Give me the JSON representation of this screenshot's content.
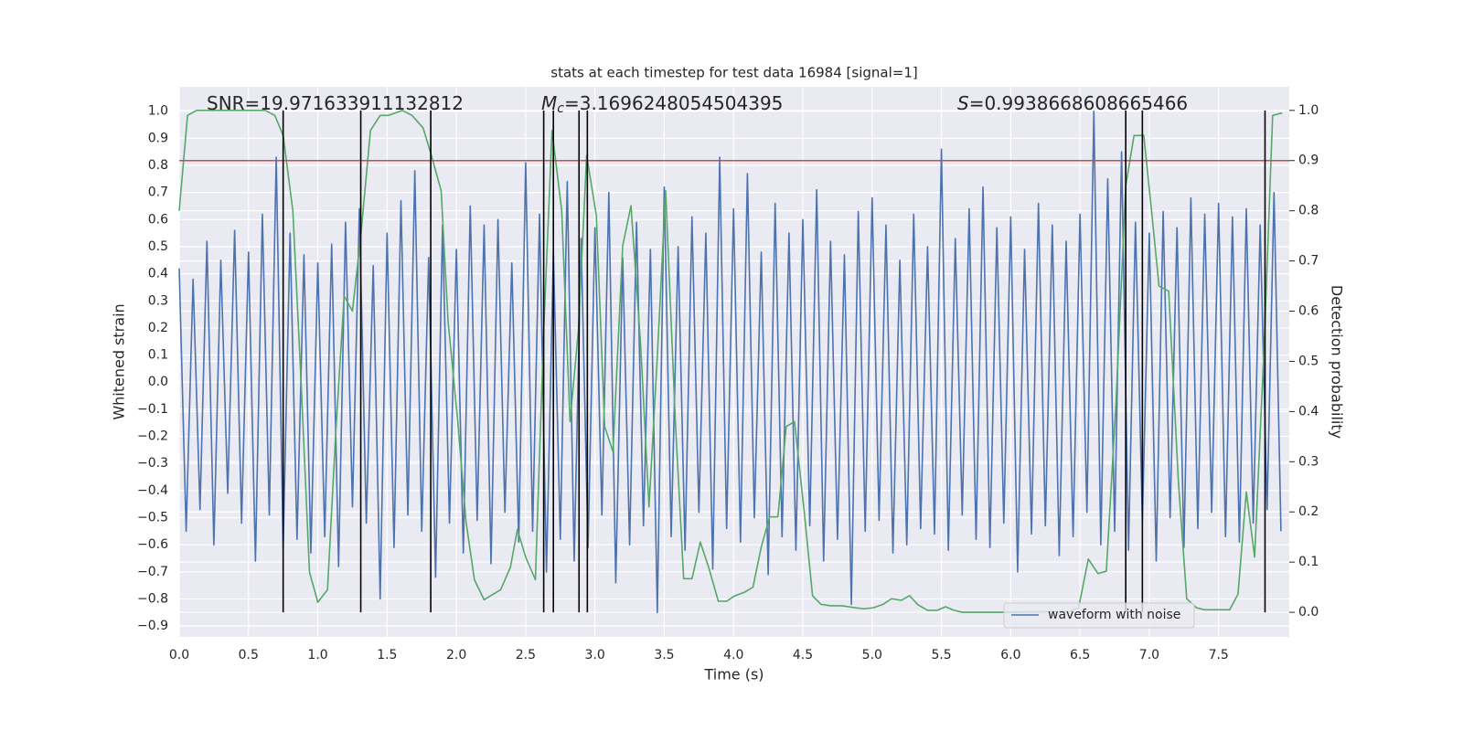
{
  "chart_data": {
    "type": "line",
    "title": "stats at each timestep for test data 16984 [signal=1]",
    "xlabel": "Time (s)",
    "ylabel": "Whitened strain",
    "y2label": "Detection probability",
    "annotations": [
      {
        "text": "SNR=19.971633911132812"
      },
      {
        "symbol": "M",
        "sub": "c",
        "text": "=3.1696248054504395"
      },
      {
        "symbol": "S",
        "text": "=0.9938668608665466"
      }
    ],
    "xlim": [
      0,
      8.01
    ],
    "ylim": [
      -0.94,
      1.09
    ],
    "y2lim": [
      -0.049,
      1.047
    ],
    "xticks": [
      {
        "value": 0,
        "label": "0.0"
      },
      0.5,
      {
        "value": 1,
        "label": "1.0"
      },
      1.5,
      {
        "value": 2,
        "label": "2.0"
      },
      2.5,
      {
        "value": 3,
        "label": "3.0"
      },
      3.5,
      {
        "value": 4,
        "label": "4.0"
      },
      4.5,
      {
        "value": 5,
        "label": "5.0"
      },
      5.5,
      {
        "value": 6,
        "label": "6.0"
      },
      6.5,
      {
        "value": 7,
        "label": "7.0"
      },
      7.5
    ],
    "yticks": [
      {
        "value": -0.9,
        "label": "−0.9"
      },
      {
        "value": -0.8,
        "label": "−0.8"
      },
      {
        "value": -0.7,
        "label": "−0.7"
      },
      {
        "value": -0.6,
        "label": "−0.6"
      },
      {
        "value": -0.5,
        "label": "−0.5"
      },
      {
        "value": -0.4,
        "label": "−0.4"
      },
      {
        "value": -0.3,
        "label": "−0.3"
      },
      {
        "value": -0.2,
        "label": "−0.2"
      },
      {
        "value": -0.1,
        "label": "−0.1"
      },
      {
        "value": 0,
        "label": "0.0"
      },
      0.1,
      0.2,
      0.3,
      0.4,
      0.5,
      0.6,
      0.7,
      0.8,
      0.9,
      {
        "value": 1,
        "label": "1.0"
      }
    ],
    "y2ticks": [
      {
        "value": 0,
        "label": "0.0"
      },
      0.1,
      0.2,
      0.3,
      0.4,
      0.5,
      0.6,
      0.7,
      0.8,
      0.9,
      {
        "value": 1,
        "label": "1.0"
      }
    ],
    "grid": true,
    "legend": "lower right",
    "series": [
      {
        "name": "waveform with noise",
        "color": "#4c72b0",
        "x": [
          0,
          0.05,
          0.1,
          0.15,
          0.2,
          0.25,
          0.3,
          0.35,
          0.4,
          0.45,
          0.5,
          0.55,
          0.6,
          0.65,
          0.7,
          0.75,
          0.8,
          0.85,
          0.9,
          0.95,
          1,
          1.05,
          1.1,
          1.15,
          1.2,
          1.25,
          1.3,
          1.35,
          1.4,
          1.45,
          1.5,
          1.55,
          1.6,
          1.65,
          1.7,
          1.75,
          1.8,
          1.85,
          1.9,
          1.95,
          2,
          2.05,
          2.1,
          2.15,
          2.2,
          2.25,
          2.3,
          2.35,
          2.4,
          2.45,
          2.5,
          2.55,
          2.6,
          2.65,
          2.7,
          2.75,
          2.8,
          2.85,
          2.9,
          2.95,
          3,
          3.05,
          3.1,
          3.15,
          3.2,
          3.25,
          3.3,
          3.35,
          3.4,
          3.45,
          3.5,
          3.55,
          3.6,
          3.65,
          3.7,
          3.75,
          3.8,
          3.85,
          3.9,
          3.95,
          4,
          4.05,
          4.1,
          4.15,
          4.2,
          4.25,
          4.3,
          4.35,
          4.4,
          4.45,
          4.5,
          4.55,
          4.6,
          4.65,
          4.7,
          4.75,
          4.8,
          4.85,
          4.9,
          4.95,
          5,
          5.05,
          5.1,
          5.15,
          5.2,
          5.25,
          5.3,
          5.35,
          5.4,
          5.45,
          5.5,
          5.55,
          5.6,
          5.65,
          5.7,
          5.75,
          5.8,
          5.85,
          5.9,
          5.95,
          6,
          6.05,
          6.1,
          6.15,
          6.2,
          6.25,
          6.3,
          6.35,
          6.4,
          6.45,
          6.5,
          6.55,
          6.6,
          6.65,
          6.7,
          6.75,
          6.8,
          6.85,
          6.9,
          6.95,
          7,
          7.05,
          7.1,
          7.15,
          7.2,
          7.25,
          7.3,
          7.35,
          7.4,
          7.45,
          7.5,
          7.55,
          7.6,
          7.65,
          7.7,
          7.75,
          7.8,
          7.85,
          7.9,
          7.95
        ],
        "values": [
          0.42,
          -0.55,
          0.38,
          -0.47,
          0.52,
          -0.6,
          0.45,
          -0.41,
          0.56,
          -0.52,
          0.48,
          -0.66,
          0.62,
          -0.49,
          0.83,
          -0.61,
          0.55,
          -0.58,
          0.47,
          -0.63,
          0.44,
          -0.57,
          0.51,
          -0.68,
          0.59,
          -0.46,
          0.64,
          -0.52,
          0.43,
          -0.8,
          0.55,
          -0.61,
          0.67,
          -0.49,
          0.78,
          -0.55,
          0.46,
          -0.72,
          0.58,
          -0.52,
          0.49,
          -0.63,
          0.65,
          -0.51,
          0.58,
          -0.67,
          0.6,
          -0.48,
          0.44,
          -0.59,
          0.81,
          -0.55,
          0.62,
          -0.7,
          0.48,
          -0.58,
          0.74,
          -0.66,
          0.53,
          -0.61,
          0.57,
          -0.49,
          0.7,
          -0.74,
          0.46,
          -0.6,
          0.59,
          -0.53,
          0.49,
          -0.85,
          0.72,
          -0.57,
          0.5,
          -0.62,
          0.61,
          -0.48,
          0.55,
          -0.69,
          0.83,
          -0.54,
          0.64,
          -0.59,
          0.77,
          -0.5,
          0.48,
          -0.71,
          0.66,
          -0.57,
          0.55,
          -0.62,
          0.6,
          -0.53,
          0.71,
          -0.66,
          0.52,
          -0.58,
          0.47,
          -0.82,
          0.63,
          -0.55,
          0.68,
          -0.51,
          0.58,
          -0.63,
          0.45,
          -0.6,
          0.62,
          -0.54,
          0.5,
          -0.56,
          0.86,
          -0.62,
          0.53,
          -0.49,
          0.64,
          -0.58,
          0.72,
          -0.61,
          0.57,
          -0.52,
          0.61,
          -0.7,
          0.49,
          -0.56,
          0.66,
          -0.53,
          0.58,
          -0.64,
          0.52,
          -0.57,
          0.62,
          -0.48,
          1.0,
          -0.6,
          0.75,
          -0.55,
          0.85,
          -0.62,
          0.59,
          -0.51,
          0.55,
          -0.66,
          0.63,
          -0.5,
          0.57,
          -0.61,
          0.68,
          -0.54,
          0.62,
          -0.48,
          0.66,
          -0.57,
          0.61,
          -0.59,
          0.64,
          -0.52,
          0.58,
          -0.47,
          0.7,
          -0.55
        ]
      },
      {
        "color": "#55a868",
        "axis": "y2",
        "x": [
          0,
          0.06,
          0.125,
          0.62,
          0.69,
          0.75,
          0.82,
          0.88,
          0.94,
          1.0,
          1.07,
          1.13,
          1.19,
          1.25,
          1.31,
          1.38,
          1.45,
          1.51,
          1.61,
          1.68,
          1.76,
          1.82,
          1.89,
          1.94,
          2.01,
          2.07,
          2.13,
          2.2,
          2.26,
          2.32,
          2.39,
          2.44,
          2.5,
          2.57,
          2.63,
          2.69,
          2.76,
          2.82,
          2.88,
          2.94,
          3.01,
          3.07,
          3.13,
          3.2,
          3.26,
          3.33,
          3.39,
          3.45,
          3.51,
          3.58,
          3.64,
          3.7,
          3.76,
          3.82,
          3.89,
          3.95,
          4.01,
          4.08,
          4.14,
          4.2,
          4.26,
          4.32,
          4.38,
          4.44,
          4.51,
          4.57,
          4.63,
          4.7,
          4.78,
          4.88,
          4.94,
          5.01,
          5.08,
          5.14,
          5.21,
          5.27,
          5.33,
          5.4,
          5.47,
          5.53,
          5.59,
          5.65,
          5.97,
          6.43,
          6.49,
          6.56,
          6.63,
          6.69,
          6.76,
          6.83,
          6.89,
          6.96,
          7.02,
          7.07,
          7.14,
          7.21,
          7.27,
          7.34,
          7.4,
          7.48,
          7.58,
          7.64,
          7.7,
          7.76,
          7.83,
          7.89,
          7.96
        ],
        "values": [
          0.8,
          0.99,
          1.0,
          1.0,
          0.99,
          0.95,
          0.8,
          0.455,
          0.08,
          0.02,
          0.045,
          0.36,
          0.63,
          0.6,
          0.75,
          0.96,
          0.99,
          0.99,
          1.0,
          0.99,
          0.965,
          0.91,
          0.84,
          0.58,
          0.38,
          0.18,
          0.065,
          0.025,
          0.035,
          0.045,
          0.09,
          0.165,
          0.11,
          0.065,
          0.56,
          0.96,
          0.8,
          0.38,
          0.56,
          0.91,
          0.79,
          0.37,
          0.32,
          0.73,
          0.81,
          0.53,
          0.21,
          0.51,
          0.84,
          0.38,
          0.067,
          0.067,
          0.14,
          0.09,
          0.022,
          0.022,
          0.033,
          0.04,
          0.05,
          0.13,
          0.19,
          0.19,
          0.37,
          0.38,
          0.2,
          0.033,
          0.016,
          0.013,
          0.013,
          0.009,
          0.007,
          0.009,
          0.016,
          0.027,
          0.024,
          0.033,
          0.015,
          0.004,
          0.004,
          0.011,
          0.004,
          0.0,
          0.0,
          0.002,
          0.009,
          0.106,
          0.077,
          0.082,
          0.42,
          0.85,
          0.95,
          0.95,
          0.79,
          0.65,
          0.64,
          0.26,
          0.027,
          0.009,
          0.005,
          0.005,
          0.005,
          0.036,
          0.24,
          0.11,
          0.54,
          0.99,
          0.995
        ]
      }
    ],
    "threshold": {
      "value": 0.9,
      "axis": "y2",
      "color": "#c44e52"
    },
    "vlines": [
      0.75,
      1.31,
      1.815,
      2.63,
      2.7,
      2.885,
      2.945,
      6.83,
      6.95,
      7.835
    ],
    "vline_color": "#000000"
  }
}
